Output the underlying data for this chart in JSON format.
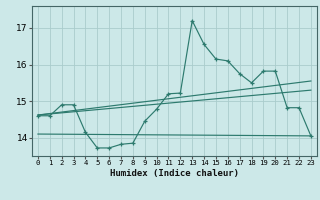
{
  "title": "",
  "xlabel": "Humidex (Indice chaleur)",
  "background_color": "#cce8e8",
  "grid_color": "#aacccc",
  "line_color": "#2d7a6e",
  "xlim": [
    -0.5,
    23.5
  ],
  "ylim": [
    13.5,
    17.6
  ],
  "yticks": [
    14,
    15,
    16,
    17
  ],
  "xticks": [
    0,
    1,
    2,
    3,
    4,
    5,
    6,
    7,
    8,
    9,
    10,
    11,
    12,
    13,
    14,
    15,
    16,
    17,
    18,
    19,
    20,
    21,
    22,
    23
  ],
  "main_line_x": [
    0,
    1,
    2,
    3,
    4,
    5,
    6,
    7,
    8,
    9,
    10,
    11,
    12,
    13,
    14,
    15,
    16,
    17,
    18,
    19,
    20,
    21,
    22,
    23
  ],
  "main_line_y": [
    14.6,
    14.6,
    14.9,
    14.9,
    14.15,
    13.72,
    13.72,
    13.82,
    13.85,
    14.45,
    14.78,
    15.2,
    15.22,
    17.2,
    16.55,
    16.15,
    16.1,
    15.75,
    15.5,
    15.82,
    15.82,
    14.82,
    14.82,
    14.05
  ],
  "reg_line1_x": [
    0,
    23
  ],
  "reg_line1_y": [
    14.62,
    15.55
  ],
  "reg_line2_x": [
    0,
    23
  ],
  "reg_line2_y": [
    14.62,
    15.3
  ],
  "reg_line3_x": [
    0,
    23
  ],
  "reg_line3_y": [
    14.1,
    14.05
  ]
}
